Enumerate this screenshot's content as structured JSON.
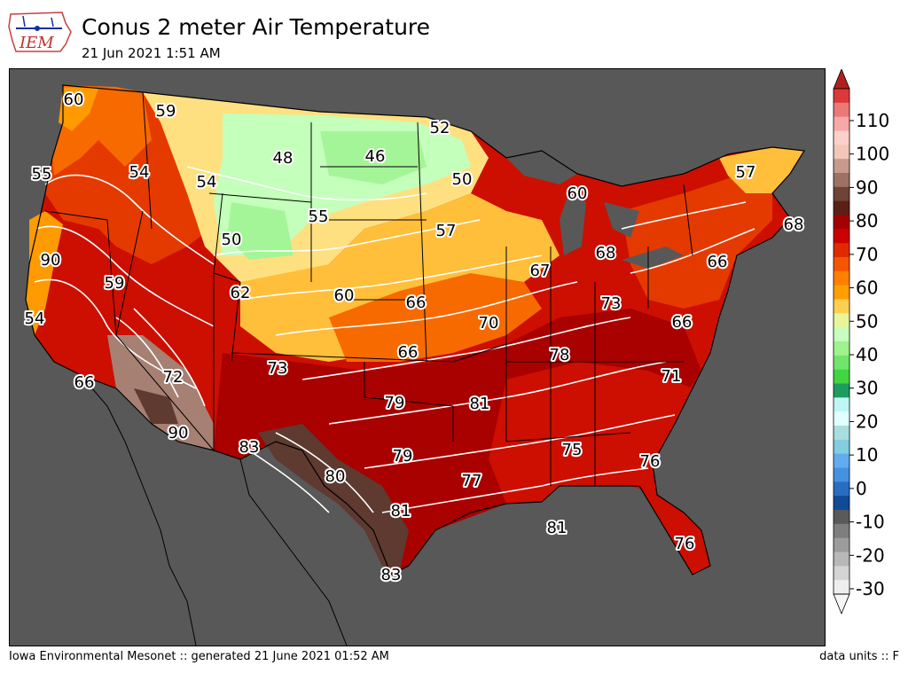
{
  "header": {
    "logo_text": "IEM",
    "title": "Conus 2 meter Air Temperature",
    "subtitle": "21 Jun 2021 1:51 AM"
  },
  "footer": {
    "left": "Iowa Environmental Mesonet :: generated 21 June 2021 01:52 AM",
    "right": "data units :: F"
  },
  "colors": {
    "ocean": "#585858",
    "very_hot": "#5e3a30",
    "hot_brown": "#a68073",
    "dark_red": "#a90000",
    "red": "#cc0f00",
    "red_orange": "#e43a00",
    "orange": "#f76a00",
    "light_orange": "#ff9a00",
    "pale_orange": "#ffbf3b",
    "yellow": "#ffe080",
    "pale_green": "#c4ffbb",
    "green": "#a4f597"
  },
  "colorbar": {
    "ticks": [
      "110",
      "100",
      "90",
      "80",
      "70",
      "60",
      "50",
      "40",
      "30",
      "20",
      "10",
      "0",
      "-10",
      "-20",
      "-30"
    ],
    "colors": [
      "#dc3a3a",
      "#ec7878",
      "#f6a8a8",
      "#fdd1c9",
      "#f2c7b8",
      "#c69a8d",
      "#9d7163",
      "#6d4437",
      "#5b2015",
      "#a50000",
      "#cc0000",
      "#e02b00",
      "#f45500",
      "#ff8000",
      "#ffa000",
      "#ffd050",
      "#e9f59b",
      "#c7ffc0",
      "#9ff28e",
      "#71e56b",
      "#42d542",
      "#1e9c60",
      "#bef6f6",
      "#e2ffff",
      "#a9dede",
      "#84cde0",
      "#62abee",
      "#4690e1",
      "#2a6cc3",
      "#114a96",
      "#5a5a5a",
      "#7e7e7e",
      "#9c9c9c",
      "#b8b8b8",
      "#d4d4d4",
      "#eeeeee"
    ]
  },
  "map_labels": [
    {
      "text": "60"
    },
    {
      "text": "59"
    },
    {
      "text": "52"
    },
    {
      "text": "55"
    },
    {
      "text": "54"
    },
    {
      "text": "54"
    },
    {
      "text": "48"
    },
    {
      "text": "46"
    },
    {
      "text": "50"
    },
    {
      "text": "57"
    },
    {
      "text": "60"
    },
    {
      "text": "55"
    },
    {
      "text": "50"
    },
    {
      "text": "57"
    },
    {
      "text": "68"
    },
    {
      "text": "90"
    },
    {
      "text": "59"
    },
    {
      "text": "62"
    },
    {
      "text": "60"
    },
    {
      "text": "66"
    },
    {
      "text": "67"
    },
    {
      "text": "68"
    },
    {
      "text": "66"
    },
    {
      "text": "54"
    },
    {
      "text": "70"
    },
    {
      "text": "73"
    },
    {
      "text": "66"
    },
    {
      "text": "66"
    },
    {
      "text": "73"
    },
    {
      "text": "78"
    },
    {
      "text": "72"
    },
    {
      "text": "71"
    },
    {
      "text": "66"
    },
    {
      "text": "79"
    },
    {
      "text": "81"
    },
    {
      "text": "90"
    },
    {
      "text": "83"
    },
    {
      "text": "79"
    },
    {
      "text": "75"
    },
    {
      "text": "76"
    },
    {
      "text": "80"
    },
    {
      "text": "77"
    },
    {
      "text": "81"
    },
    {
      "text": "81"
    },
    {
      "text": "76"
    },
    {
      "text": "83"
    }
  ]
}
